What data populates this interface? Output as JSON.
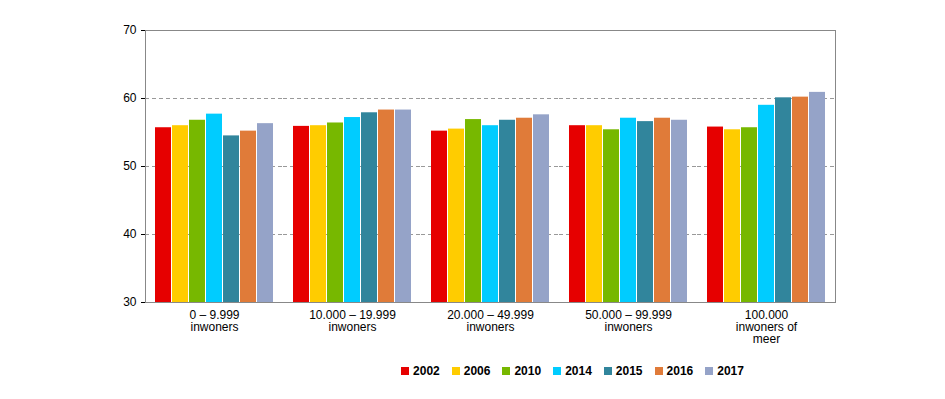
{
  "chart_data": {
    "type": "bar",
    "categories": [
      "0 – 9.999\ninwoners",
      "10.000 – 19.999\ninwoners",
      "20.000 – 49.999\ninwoners",
      "50.000 – 99.999\ninwoners",
      "100.000\ninwoners of\nmeer"
    ],
    "series": [
      {
        "name": "2002",
        "color": "#e60000",
        "values": [
          55.7,
          55.9,
          55.2,
          56.0,
          55.8
        ]
      },
      {
        "name": "2006",
        "color": "#ffcc00",
        "values": [
          56.0,
          56.0,
          55.5,
          56.0,
          55.4
        ]
      },
      {
        "name": "2010",
        "color": "#77b800",
        "values": [
          56.8,
          56.4,
          56.9,
          55.4,
          55.7
        ]
      },
      {
        "name": "2014",
        "color": "#00ccff",
        "values": [
          57.7,
          57.2,
          56.0,
          57.1,
          59.0
        ]
      },
      {
        "name": "2015",
        "color": "#31859c",
        "values": [
          54.5,
          57.9,
          56.8,
          56.6,
          60.1
        ]
      },
      {
        "name": "2016",
        "color": "#e07b39",
        "values": [
          55.2,
          58.3,
          57.1,
          57.1,
          60.2
        ]
      },
      {
        "name": "2017",
        "color": "#95a3c8",
        "values": [
          56.3,
          58.3,
          57.6,
          56.8,
          60.9
        ]
      }
    ],
    "ylim": [
      30,
      70
    ],
    "yticks": [
      30,
      40,
      50,
      60,
      70
    ],
    "grid": true,
    "legend": "bottom"
  }
}
